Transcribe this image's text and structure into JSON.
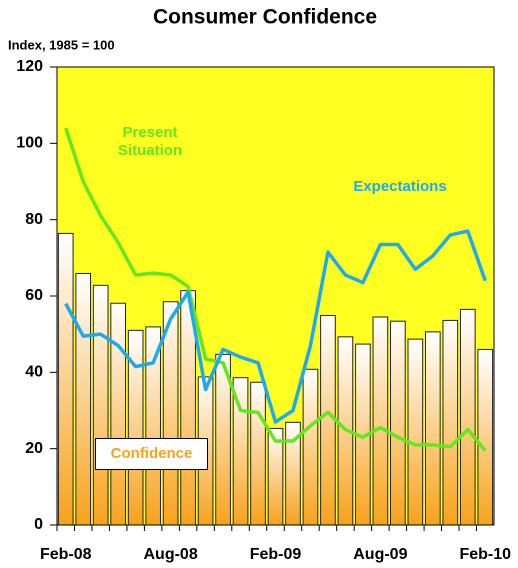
{
  "chart_data": {
    "type": "bar",
    "title": "Consumer Confidence",
    "subtitle": "Index, 1985 = 100",
    "categories": [
      "Feb-08",
      null,
      null,
      null,
      null,
      null,
      "Aug-08",
      null,
      null,
      null,
      null,
      null,
      "Feb-09",
      null,
      null,
      null,
      null,
      null,
      "Aug-09",
      null,
      null,
      null,
      null,
      null,
      "Feb-10"
    ],
    "series": [
      {
        "name": "Confidence",
        "type": "bar",
        "color": "#f7a21b",
        "values": [
          76.4,
          65.9,
          62.8,
          58.1,
          51.0,
          51.9,
          58.5,
          61.4,
          38.8,
          44.7,
          38.6,
          37.4,
          25.3,
          26.9,
          40.8,
          54.9,
          49.3,
          47.4,
          54.5,
          53.4,
          48.7,
          50.6,
          53.6,
          56.5,
          46.0
        ]
      },
      {
        "name": "Present Situation",
        "type": "line",
        "color": "#66e620",
        "values": [
          104,
          90,
          81,
          74,
          65.5,
          66,
          65.5,
          62.5,
          43.5,
          42.5,
          30,
          29.5,
          22,
          22,
          26,
          29.5,
          25,
          23,
          25.5,
          23,
          21,
          21,
          20.5,
          25,
          19.5
        ]
      },
      {
        "name": "Expectations",
        "type": "line",
        "color": "#1eaaee",
        "values": [
          58,
          49.5,
          50,
          47,
          41.5,
          42.5,
          54,
          61,
          35.5,
          46,
          44,
          42.5,
          27,
          30,
          47,
          71.5,
          65.5,
          63.5,
          73.5,
          73.5,
          67,
          70.5,
          76,
          77,
          64
        ]
      }
    ],
    "ylim": [
      0,
      120
    ],
    "yticks": [
      0,
      20,
      40,
      60,
      80,
      100,
      120
    ],
    "background": "#ffff22"
  }
}
